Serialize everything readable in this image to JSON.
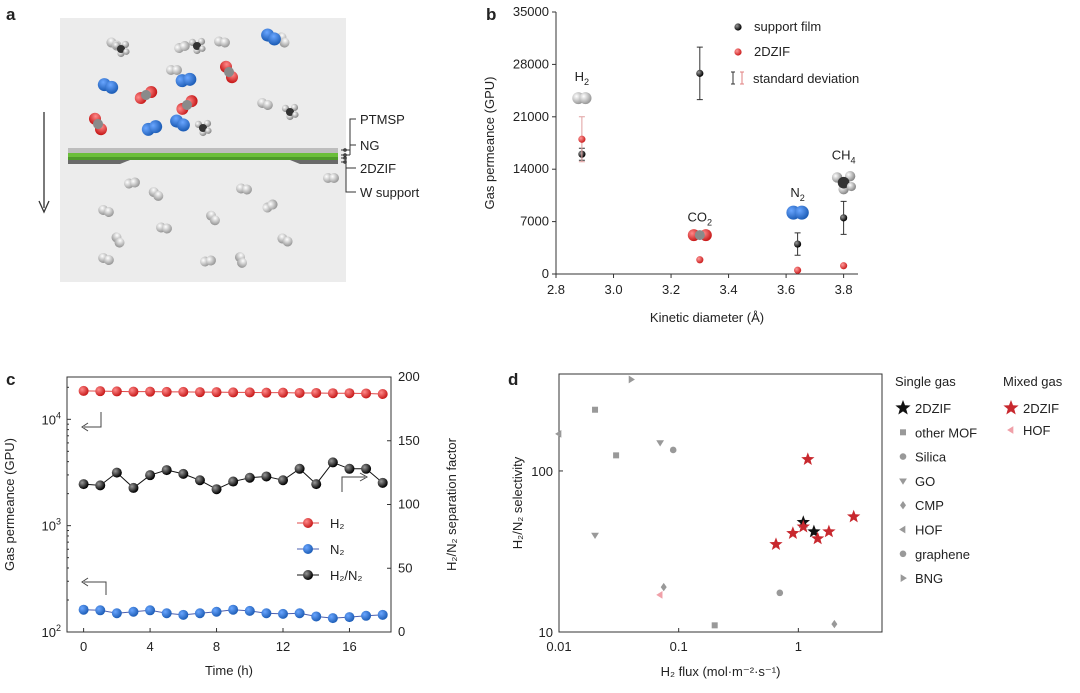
{
  "panels": [
    "a",
    "b",
    "c",
    "d"
  ],
  "panel_a": {
    "layers": [
      "PTMSP",
      "NG",
      "2DZIF",
      "W support"
    ]
  },
  "chart_data": [
    {
      "id": "b",
      "type": "scatter",
      "xlabel": "Kinetic diameter (Å)",
      "ylabel": "Gas permeance (GPU)",
      "xlim": [
        2.8,
        3.85
      ],
      "ylim": [
        0,
        35000
      ],
      "xticks": [
        "2.8",
        "3.0",
        "3.2",
        "3.4",
        "3.6",
        "3.8"
      ],
      "yticks": [
        "0",
        "7000",
        "14000",
        "21000",
        "28000",
        "35000"
      ],
      "gas_labels": [
        {
          "base": "H",
          "sub": "2",
          "x": 2.89,
          "y": 25800
        },
        {
          "base": "CO",
          "sub": "2",
          "x": 3.3,
          "y": 7000
        },
        {
          "base": "N",
          "sub": "2",
          "x": 3.64,
          "y": 10300
        },
        {
          "base": "CH",
          "sub": "4",
          "x": 3.8,
          "y": 15300
        }
      ],
      "legend": [
        "support film",
        "2DZIF",
        "standard deviation"
      ],
      "series": [
        {
          "name": "support film",
          "color": "#111111",
          "points": [
            {
              "x": 2.89,
              "y": 16000,
              "err": 800
            },
            {
              "x": 3.3,
              "y": 26800,
              "err": 3500
            },
            {
              "x": 3.64,
              "y": 4000,
              "err": 1500
            },
            {
              "x": 3.8,
              "y": 7500,
              "err": 2200
            }
          ]
        },
        {
          "name": "2DZIF",
          "color": "#d93030",
          "points": [
            {
              "x": 2.89,
              "y": 18000,
              "err": 3000
            },
            {
              "x": 3.3,
              "y": 1900,
              "err": 0
            },
            {
              "x": 3.64,
              "y": 500,
              "err": 0
            },
            {
              "x": 3.8,
              "y": 1100,
              "err": 0
            }
          ]
        }
      ]
    },
    {
      "id": "c",
      "type": "line",
      "xlabel": "Time (h)",
      "ylabel_left": "Gas permeance (GPU)",
      "ylabel_right": "H₂/N₂ separation factor",
      "xlim": [
        -1,
        18.5
      ],
      "xticks": [
        "0",
        "4",
        "8",
        "12",
        "16"
      ],
      "ylim_left_log": [
        100,
        25000
      ],
      "yticks_left": [
        {
          "base": "10",
          "exp": "2"
        },
        {
          "base": "10",
          "exp": "3"
        },
        {
          "base": "10",
          "exp": "4"
        }
      ],
      "ylim_right": [
        0,
        200
      ],
      "yticks_right": [
        "0",
        "50",
        "100",
        "150",
        "200"
      ],
      "x": [
        0,
        1,
        2,
        3,
        4,
        5,
        6,
        7,
        8,
        9,
        10,
        11,
        12,
        13,
        14,
        15,
        16,
        17,
        18
      ],
      "series": [
        {
          "name": "H₂",
          "axis": "left",
          "color": "#e04848",
          "values": [
            18500,
            18400,
            18300,
            18200,
            18200,
            18100,
            18100,
            18000,
            18000,
            17900,
            17900,
            17800,
            17800,
            17700,
            17700,
            17600,
            17600,
            17500,
            17300
          ]
        },
        {
          "name": "N₂",
          "axis": "left",
          "color": "#4a5fb0",
          "values": [
            162,
            160,
            150,
            155,
            160,
            150,
            145,
            150,
            155,
            162,
            158,
            150,
            148,
            150,
            140,
            135,
            138,
            142,
            145
          ]
        },
        {
          "name": "H₂/N₂",
          "axis": "right",
          "color": "#111111",
          "values": [
            116,
            115,
            125,
            113,
            123,
            127,
            124,
            119,
            112,
            118,
            121,
            122,
            119,
            128,
            116,
            133,
            128,
            128,
            117
          ]
        }
      ],
      "legend": [
        "H₂",
        "N₂",
        "H₂/N₂"
      ]
    },
    {
      "id": "d",
      "type": "scatter",
      "xlabel": "H₂ flux (mol·m⁻²·s⁻¹)",
      "ylabel": "H₂/N₂ selectivity",
      "xscale": "log",
      "yscale": "log",
      "xlim": [
        0.01,
        5
      ],
      "ylim": [
        10,
        400
      ],
      "xticks": [
        "0.01",
        "0.1",
        "1"
      ],
      "yticks": [
        "10",
        "100"
      ],
      "legend_groups": [
        "Single gas",
        "Mixed gas"
      ],
      "series": [
        {
          "name": "2DZIF",
          "group": "Single gas",
          "marker": "star",
          "color": "#111111",
          "points": [
            [
              1.1,
              48
            ],
            [
              1.35,
              42
            ]
          ]
        },
        {
          "name": "other MOF",
          "group": "Single gas",
          "marker": "square",
          "color": "#999999",
          "points": [
            [
              0.02,
              240
            ],
            [
              0.03,
              125
            ],
            [
              0.2,
              11
            ]
          ]
        },
        {
          "name": "Silica",
          "group": "Single gas",
          "marker": "circle",
          "color": "#999999",
          "points": [
            [
              0.09,
              135
            ],
            [
              0.7,
              17.5
            ]
          ]
        },
        {
          "name": "GO",
          "group": "Single gas",
          "marker": "tri-down",
          "color": "#999999",
          "points": [
            [
              0.02,
              40
            ],
            [
              0.07,
              150
            ]
          ]
        },
        {
          "name": "CMP",
          "group": "Single gas",
          "marker": "diamond",
          "color": "#999999",
          "points": [
            [
              0.075,
              19
            ],
            [
              2.0,
              11.2
            ]
          ]
        },
        {
          "name": "HOF",
          "group": "Single gas",
          "marker": "tri-left",
          "color": "#999999",
          "points": [
            [
              0.01,
              170
            ]
          ]
        },
        {
          "name": "graphene",
          "group": "Single gas",
          "marker": "circle",
          "color": "#999999",
          "points": []
        },
        {
          "name": "BNG",
          "group": "Single gas",
          "marker": "tri-right",
          "color": "#999999",
          "points": [
            [
              0.04,
              370
            ]
          ]
        },
        {
          "name": "2DZIF",
          "group": "Mixed gas",
          "marker": "star",
          "color": "#c8282e",
          "points": [
            [
              1.2,
              118
            ],
            [
              0.65,
              35
            ],
            [
              0.9,
              41
            ],
            [
              1.1,
              45
            ],
            [
              1.45,
              38
            ],
            [
              1.8,
              42
            ],
            [
              2.9,
              52
            ]
          ]
        },
        {
          "name": "HOF",
          "group": "Mixed gas",
          "marker": "tri-left",
          "color": "#f0a0a8",
          "points": [
            [
              0.07,
              17
            ]
          ]
        }
      ]
    }
  ]
}
